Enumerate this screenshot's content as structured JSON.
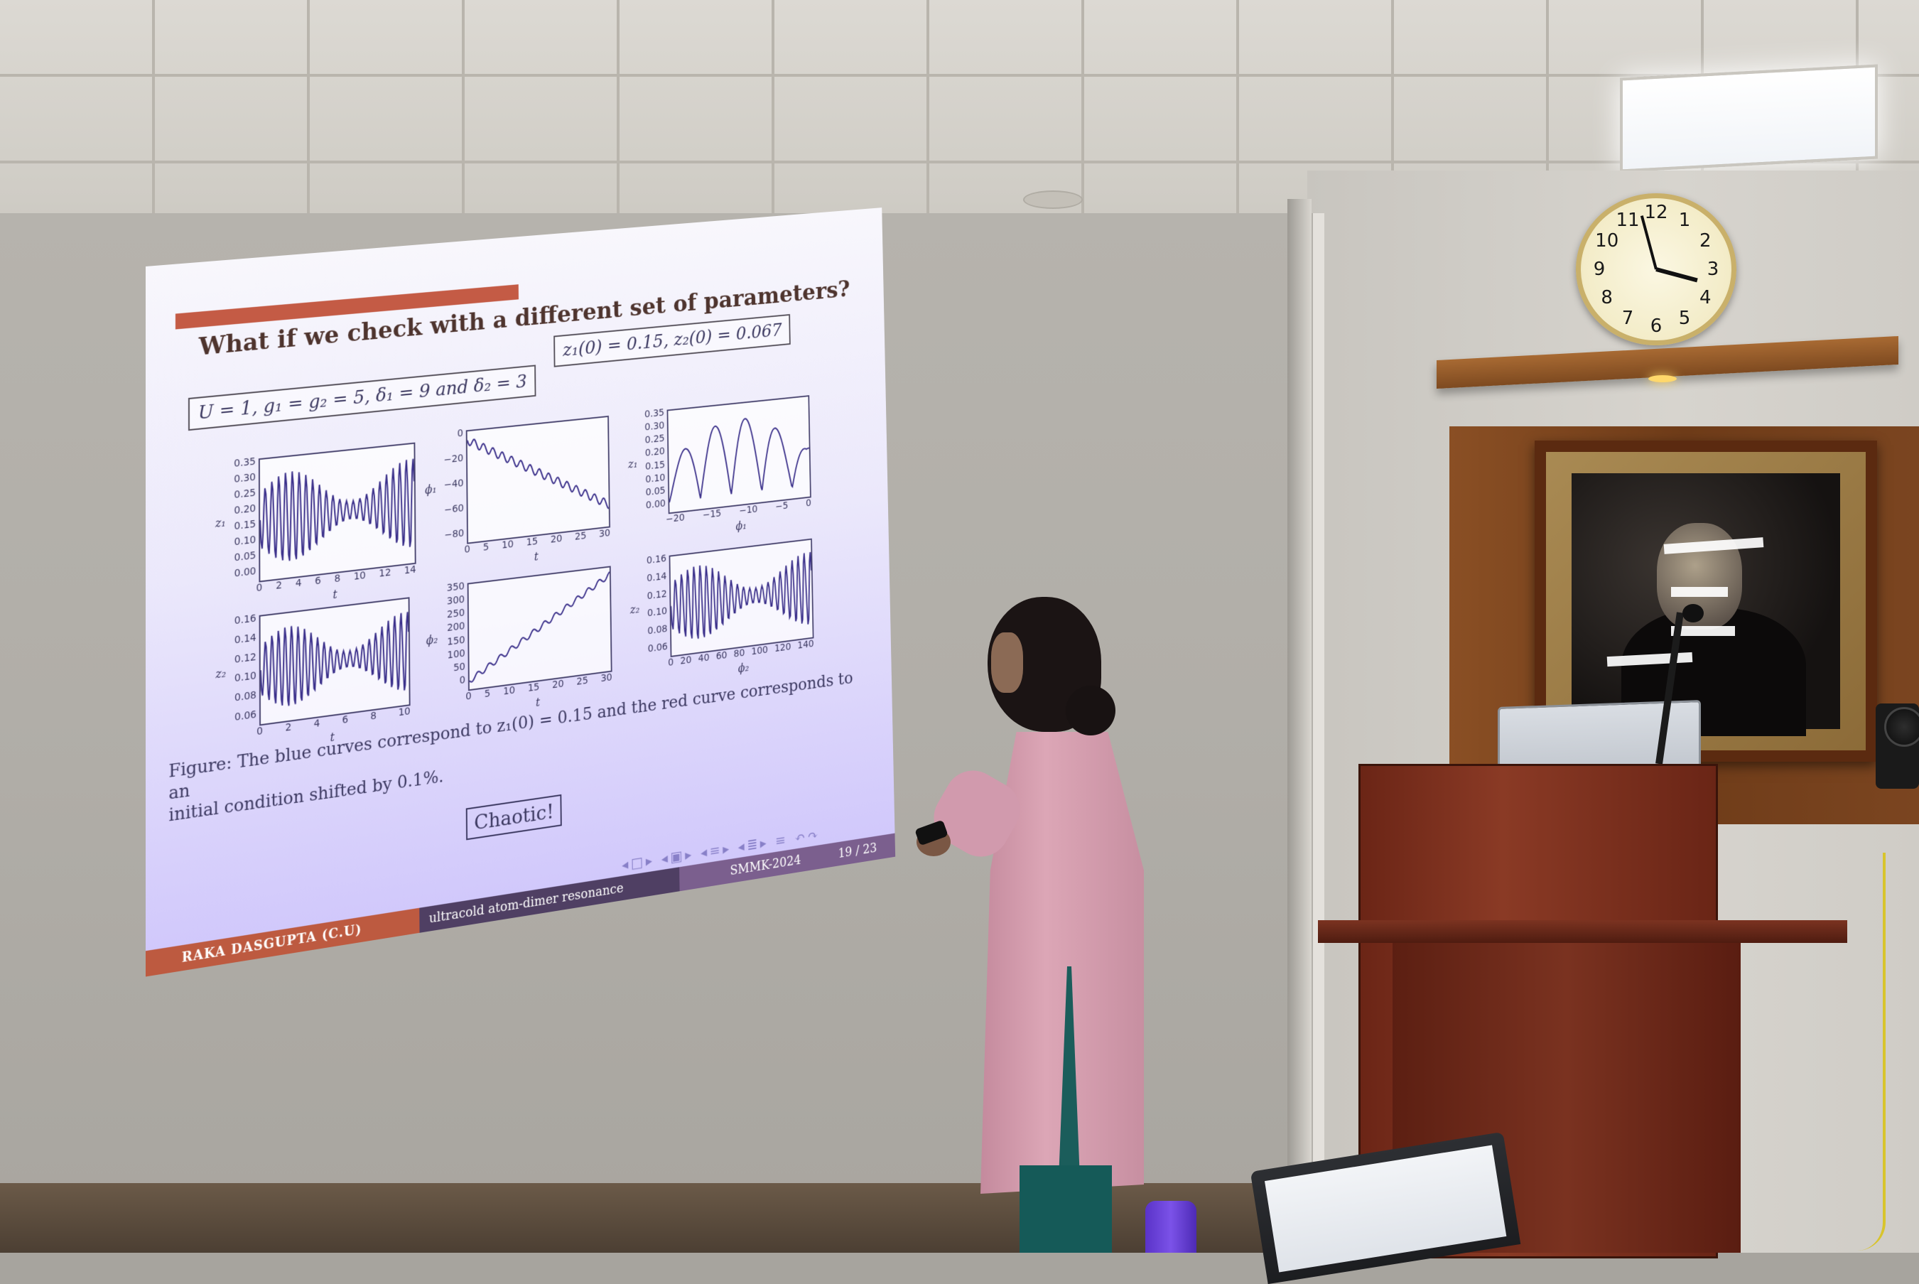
{
  "slide": {
    "title": "What if we check with a different set of parameters?",
    "params_box": "U = 1, g₁ = g₂ = 5, δ₁ = 9 and δ₂ = 3",
    "ic_box": "z₁(0) = 0.15, z₂(0) = 0.067",
    "plots": [
      {
        "ylabel": "z₁",
        "xlabel": "t",
        "yticks": [
          "0.35",
          "0.30",
          "0.25",
          "0.20",
          "0.15",
          "0.10",
          "0.05",
          "0.00"
        ],
        "xticks": [
          "0",
          "2",
          "4",
          "6",
          "8",
          "10",
          "12",
          "14"
        ]
      },
      {
        "ylabel": "ϕ₁",
        "xlabel": "t",
        "yticks": [
          "0",
          "−20",
          "−40",
          "−60",
          "−80"
        ],
        "xticks": [
          "0",
          "5",
          "10",
          "15",
          "20",
          "25",
          "30"
        ]
      },
      {
        "ylabel": "z₁",
        "xlabel": "ϕ₁",
        "yticks": [
          "0.35",
          "0.30",
          "0.25",
          "0.20",
          "0.15",
          "0.10",
          "0.05",
          "0.00"
        ],
        "xticks": [
          "−20",
          "−15",
          "−10",
          "−5",
          "0"
        ]
      },
      {
        "ylabel": "z₂",
        "xlabel": "t",
        "yticks": [
          "0.16",
          "0.14",
          "0.12",
          "0.10",
          "0.08",
          "0.06"
        ],
        "xticks": [
          "0",
          "2",
          "4",
          "6",
          "8",
          "10"
        ]
      },
      {
        "ylabel": "ϕ₂",
        "xlabel": "t",
        "yticks": [
          "350",
          "300",
          "250",
          "200",
          "150",
          "100",
          "50",
          "0"
        ],
        "xticks": [
          "0",
          "5",
          "10",
          "15",
          "20",
          "25",
          "30"
        ]
      },
      {
        "ylabel": "z₂",
        "xlabel": "ϕ₂",
        "yticks": [
          "0.16",
          "0.14",
          "0.12",
          "0.10",
          "0.08",
          "0.06"
        ],
        "xticks": [
          "0",
          "20",
          "40",
          "60",
          "80",
          "100",
          "120",
          "140"
        ]
      }
    ],
    "caption_line1": "Figure: The blue curves correspond to z₁(0) = 0.15 and the red curve corresponds to an",
    "caption_line2": "initial condition shifted by 0.1%.",
    "chaotic": "Chaotic!",
    "footer": {
      "author": "RAKA DASGUPTA (C.U)",
      "talk": "ultracold atom-dimer resonance",
      "conference": "SMMK-2024",
      "page": "19 / 23"
    }
  },
  "clock": {
    "numbers": [
      "12",
      "1",
      "2",
      "3",
      "4",
      "5",
      "6",
      "7",
      "8",
      "9",
      "10",
      "11"
    ]
  }
}
